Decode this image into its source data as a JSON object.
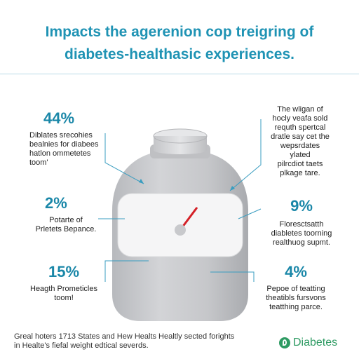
{
  "header": {
    "title_line1": "Impacts the agerenion cop treigring of",
    "title_line2": "diabetes-healthasic experiences."
  },
  "stats": [
    {
      "value": "44%",
      "text": "Diblates srecohies\nbealnies for diabees\nhatlon ommetetes\ntoom'"
    },
    {
      "value": "",
      "text": "The wligan of\nhocly veafa sold\nrequth spertcal\ndratle say cet the\nwepsrdates ylated\npilrcdiot taets\nplkage tare."
    },
    {
      "value": "2%",
      "text": "Potarte of\nPrletets Bepance."
    },
    {
      "value": "9%",
      "text": "Floresctsatth\ndiabletes toorning\nrealthuog supmt."
    },
    {
      "value": "15%",
      "text": "Heagth Prometicles\ntoom!"
    },
    {
      "value": "4%",
      "text": "Pepoe of teatting\ntheatibls fursvons\nteatthing parce."
    }
  ],
  "footer": {
    "text": "Greal hoters 1713 States and Hew Healts Healtly sected forights\nin Healte's fiefal weight edtical severds."
  },
  "brand": {
    "icon": "leaf-drop-icon",
    "label": "Diabetes"
  },
  "colors": {
    "title": "#1f93b4",
    "accent": "#1a87a8",
    "jar_body": "#c9cacd",
    "needle": "#d42027",
    "brand": "#2e9b63"
  },
  "illustration": {
    "gauge_level_percent": 45
  }
}
